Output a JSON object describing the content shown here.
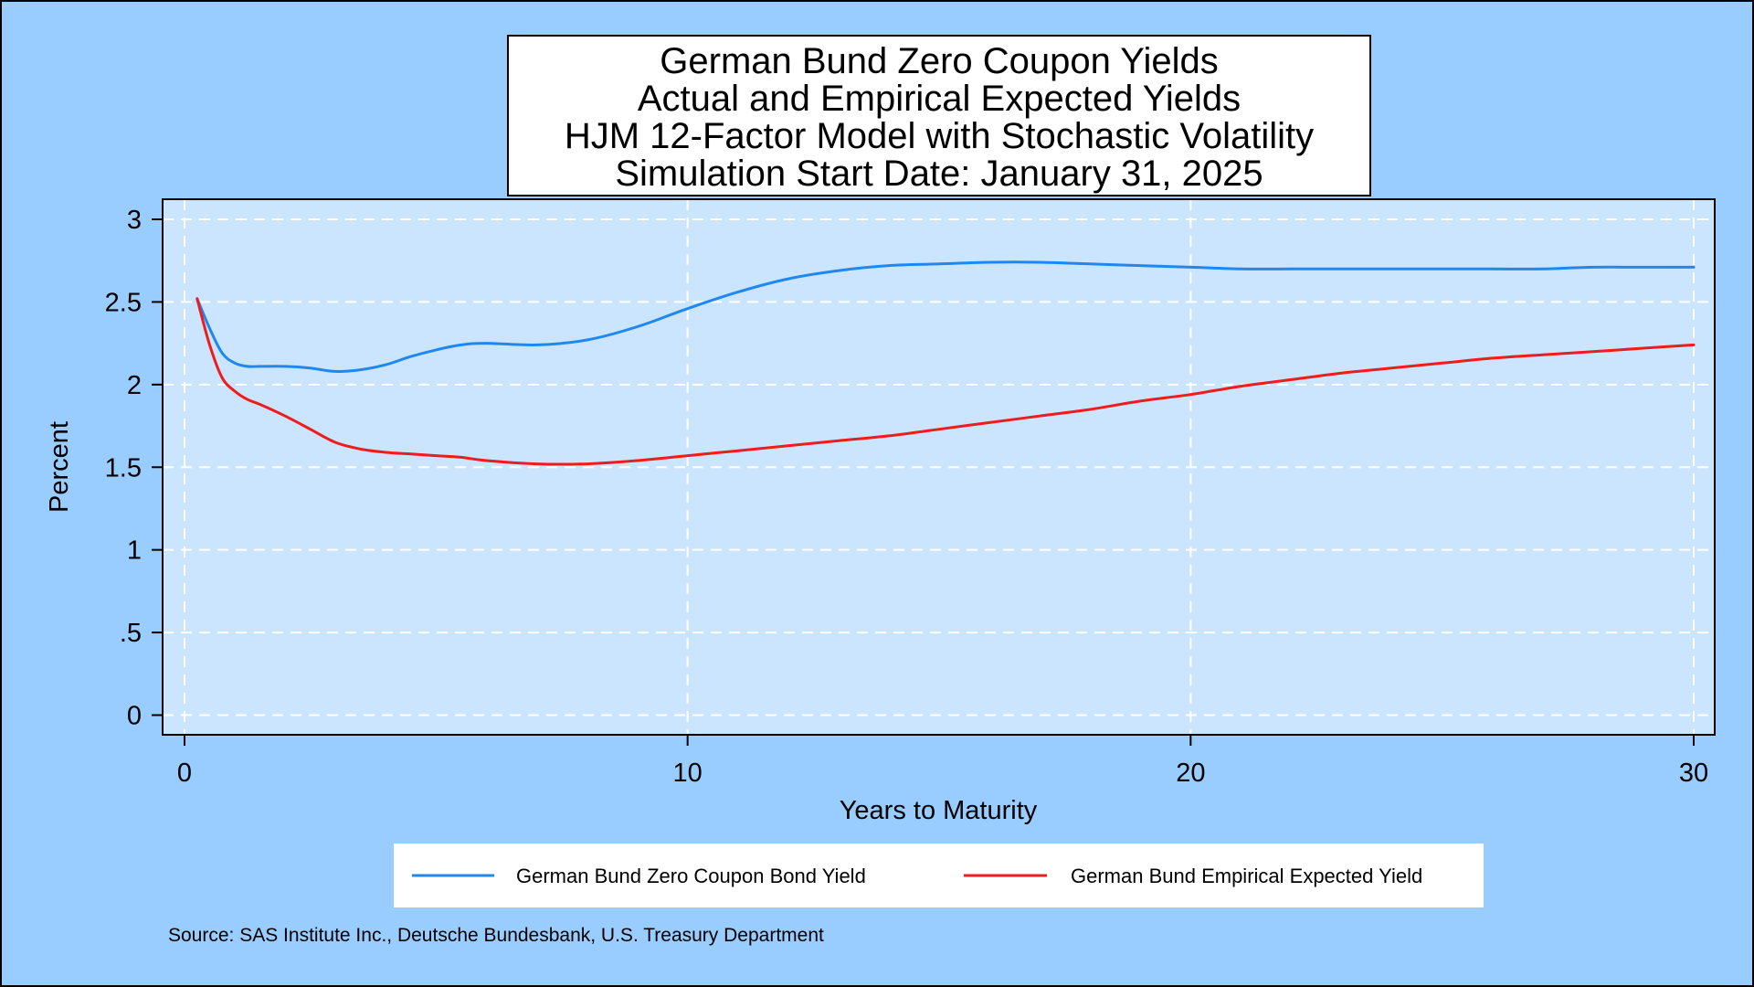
{
  "page": {
    "background": "#99CCFF"
  },
  "chart_data": {
    "type": "line",
    "title_lines": [
      "German Bund Zero Coupon Yields",
      "Actual and Empirical Expected Yields",
      "HJM 12-Factor Model with Stochastic Volatility",
      "Simulation Start Date: January 31, 2025"
    ],
    "xlabel": "Years to Maturity",
    "ylabel": "Percent",
    "xlim": [
      0,
      30
    ],
    "ylim": [
      0,
      3
    ],
    "x_ticks": [
      0,
      10,
      20,
      30
    ],
    "x_tick_labels": [
      "0",
      "10",
      "20",
      "30"
    ],
    "y_ticks": [
      0,
      0.5,
      1,
      1.5,
      2,
      2.5,
      3
    ],
    "y_tick_labels": [
      "0",
      ".5",
      "1",
      "1.5",
      "2",
      "2.5",
      "3"
    ],
    "grid": true,
    "grid_color": "#FFFFFF",
    "plot_background": "#CCE5FF",
    "legend_position": "bottom",
    "x": [
      0.25,
      0.5,
      0.75,
      1,
      1.25,
      1.5,
      2,
      2.5,
      3,
      3.5,
      4,
      4.5,
      5,
      5.5,
      6,
      7,
      8,
      9,
      10,
      11,
      12,
      13,
      14,
      15,
      16,
      17,
      18,
      19,
      20,
      21,
      22,
      23,
      24,
      25,
      26,
      27,
      28,
      29,
      30
    ],
    "series": [
      {
        "name": "German Bund Zero Coupon Bond Yield",
        "color": "#1E88F0",
        "values": [
          2.52,
          2.34,
          2.19,
          2.13,
          2.11,
          2.11,
          2.11,
          2.1,
          2.08,
          2.09,
          2.12,
          2.17,
          2.21,
          2.24,
          2.25,
          2.24,
          2.27,
          2.35,
          2.46,
          2.56,
          2.64,
          2.69,
          2.72,
          2.73,
          2.74,
          2.74,
          2.73,
          2.72,
          2.71,
          2.7,
          2.7,
          2.7,
          2.7,
          2.7,
          2.7,
          2.7,
          2.71,
          2.71,
          2.71
        ]
      },
      {
        "name": "German Bund Empirical Expected Yield",
        "color": "#EE1C1C",
        "values": [
          2.52,
          2.24,
          2.04,
          1.96,
          1.91,
          1.88,
          1.81,
          1.73,
          1.65,
          1.61,
          1.59,
          1.58,
          1.57,
          1.56,
          1.54,
          1.52,
          1.52,
          1.54,
          1.57,
          1.6,
          1.63,
          1.66,
          1.69,
          1.73,
          1.77,
          1.81,
          1.85,
          1.9,
          1.94,
          1.99,
          2.03,
          2.07,
          2.1,
          2.13,
          2.16,
          2.18,
          2.2,
          2.22,
          2.24
        ]
      }
    ]
  },
  "footer": {
    "source": "Source: SAS Institute Inc., Deutsche Bundesbank, U.S. Treasury Department"
  }
}
